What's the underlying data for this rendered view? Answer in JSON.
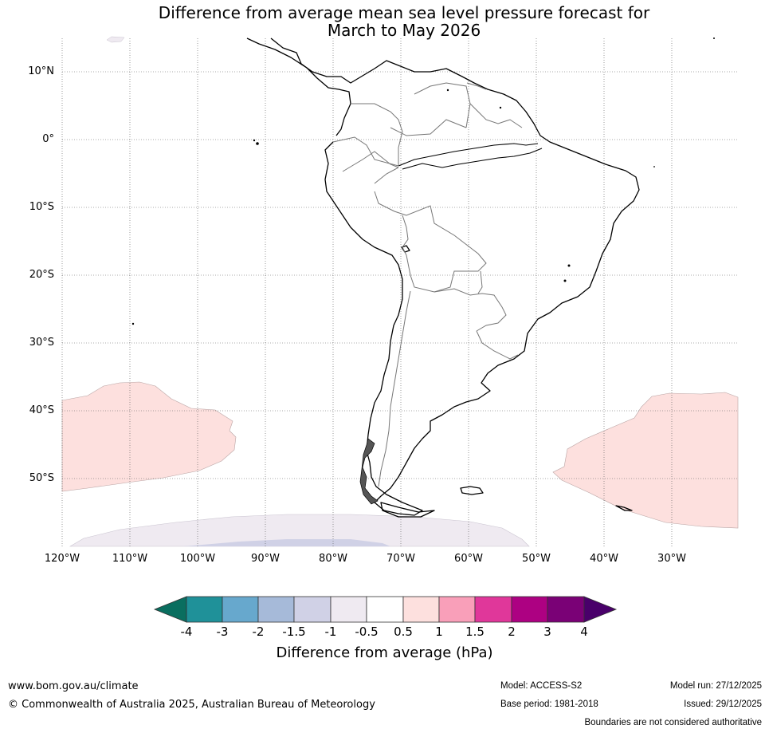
{
  "title_line1": "Difference from average mean sea level pressure forecast for",
  "title_line2": "March to May 2026",
  "lat_labels": [
    "10°N",
    "0°",
    "10°S",
    "20°S",
    "30°S",
    "40°S",
    "50°S"
  ],
  "lon_labels": [
    "120°W",
    "110°W",
    "100°W",
    "90°W",
    "80°W",
    "70°W",
    "60°W",
    "50°W",
    "40°W",
    "30°W"
  ],
  "colorbar": {
    "title": "Difference from average (hPa)",
    "tick_labels": [
      "-4",
      "-3",
      "-2",
      "-1.5",
      "-1",
      "-0.5",
      "0.5",
      "1",
      "1.5",
      "2",
      "3",
      "4"
    ],
    "colors": [
      "#0a6e5f",
      "#1f9199",
      "#67a8cd",
      "#a6bad9",
      "#d0d1e6",
      "#efeaf1",
      "#ffffff",
      "#fde0de",
      "#f99fb9",
      "#e0379a",
      "#ad0182",
      "#7a0176",
      "#49006a"
    ]
  },
  "footer": {
    "website": "www.bom.gov.au/climate",
    "copyright": "© Commonwealth of Australia 2025, Australian Bureau of Meteorology",
    "model": "Model: ACCESS-S2",
    "base_period": "Base period: 1981-2018",
    "model_run": "Model run: 27/12/2025",
    "issued": "Issued: 29/12/2025",
    "disclaimer": "Boundaries are not considered authoritative"
  }
}
